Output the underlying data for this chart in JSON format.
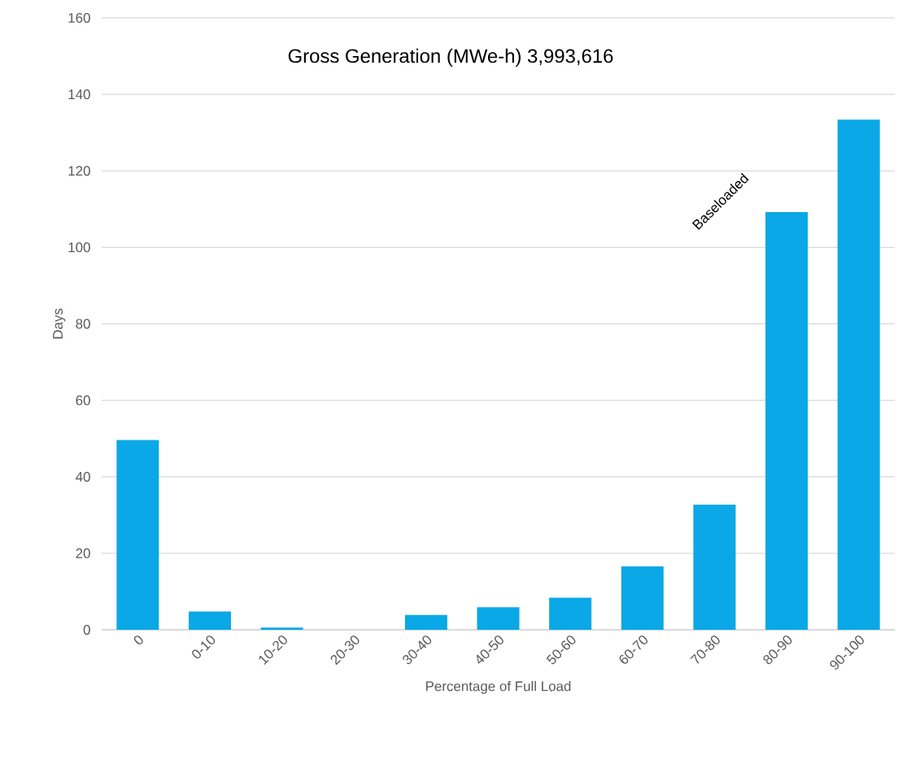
{
  "chart_data": {
    "type": "bar",
    "title": "Gross Generation (MWe-h) 3,993,616",
    "xlabel": "Percentage of Full Load",
    "ylabel": "Days",
    "categories": [
      "0",
      "0-10",
      "10-20",
      "20-30",
      "30-40",
      "40-50",
      "50-60",
      "60-70",
      "70-80",
      "80-90",
      "90-100"
    ],
    "values": [
      49.6,
      4.8,
      0.6,
      0,
      3.9,
      5.9,
      8.4,
      16.6,
      32.7,
      109.2,
      133.4
    ],
    "color": "#0aa8e6",
    "ylim": [
      0,
      160
    ],
    "yticks": [
      0,
      20,
      40,
      60,
      80,
      100,
      120,
      140,
      160
    ],
    "grid": "y",
    "annotations": [
      "Baseloaded"
    ]
  }
}
